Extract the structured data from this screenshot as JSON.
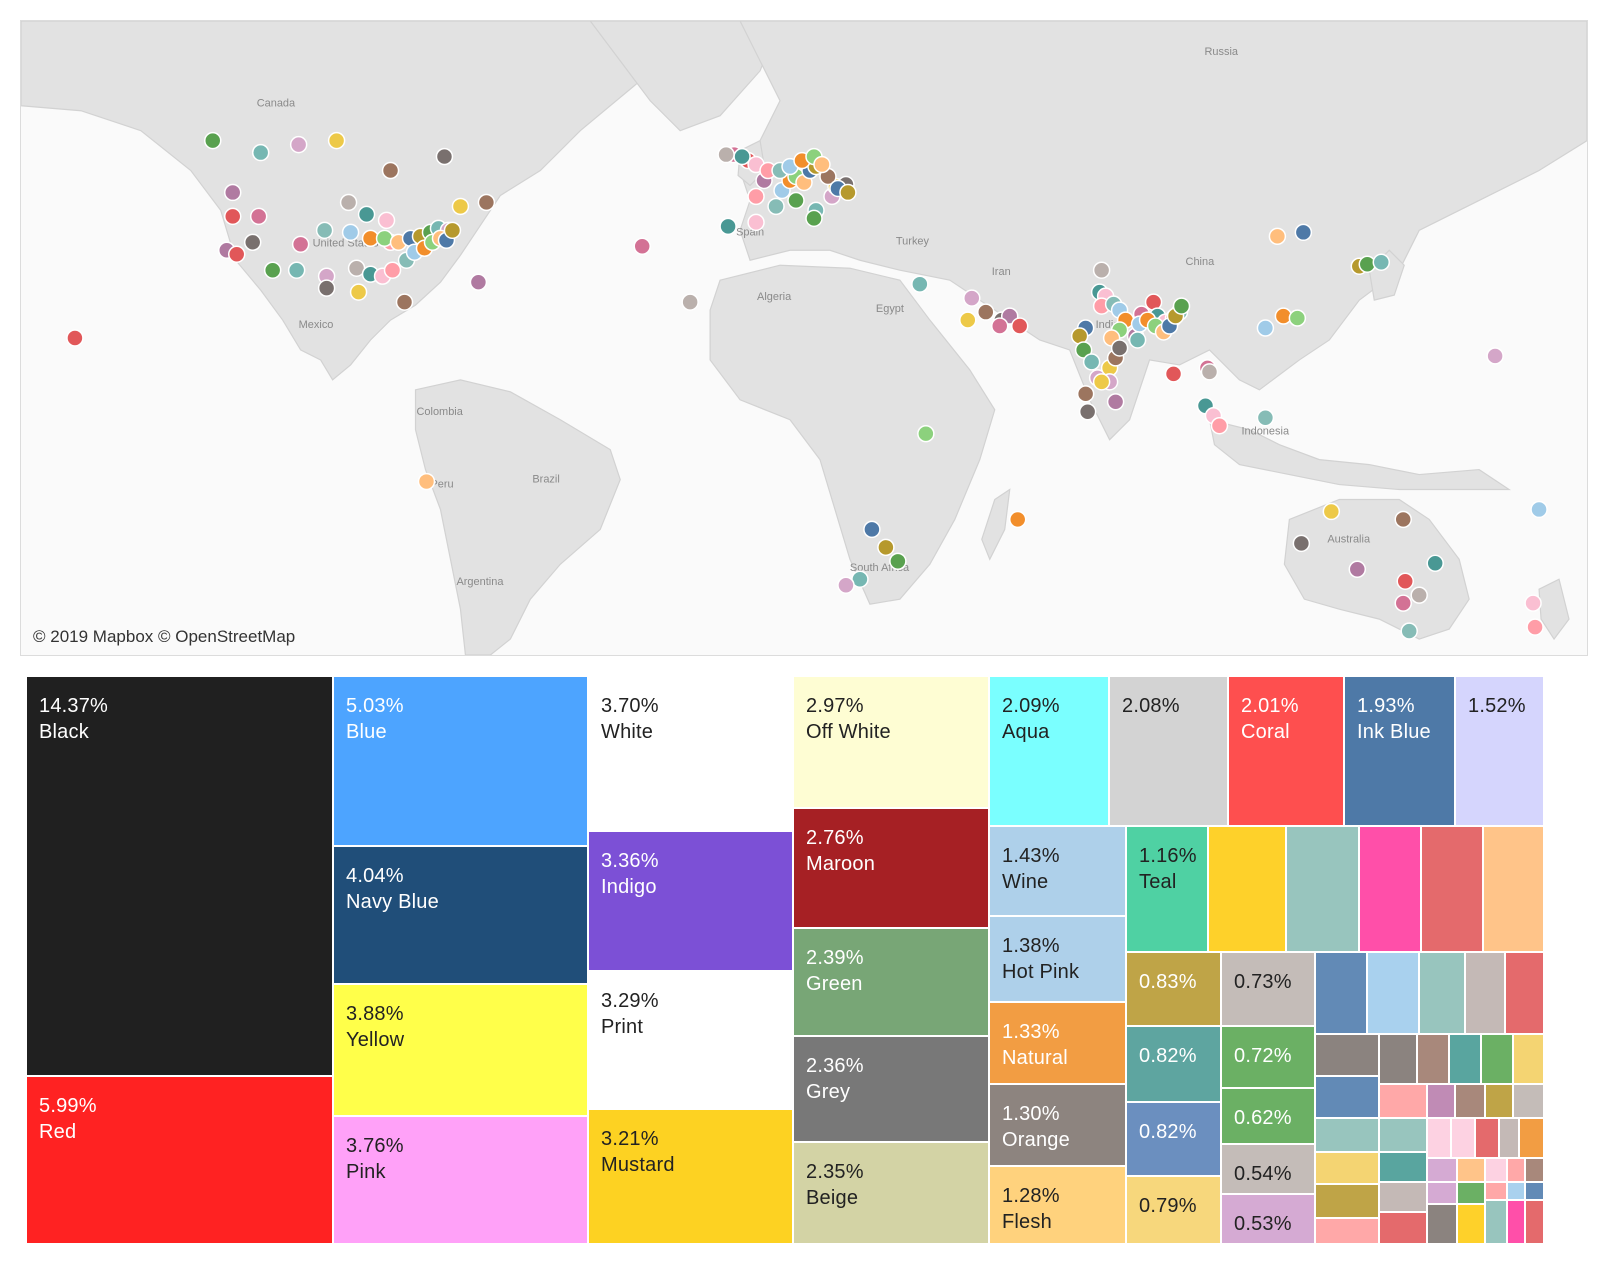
{
  "map": {
    "attribution": "© 2019 Mapbox © OpenStreetMap",
    "labels": {
      "russia": "Russia",
      "canada": "Canada",
      "us": "United States",
      "mexico": "Mexico",
      "colombia": "Colombia",
      "peru": "Peru",
      "brazil": "Brazil",
      "argentina": "Argentina",
      "spain": "Spain",
      "algeria": "Algeria",
      "egypt": "Egypt",
      "turkey": "Turkey",
      "iran": "Iran",
      "china": "China",
      "india": "India",
      "indonesia": "Indonesia",
      "australia": "Australia",
      "south_africa": "South Africa"
    },
    "palette": [
      "#59a14f",
      "#edc948",
      "#b07aa1",
      "#bab0ac",
      "#ff9da7",
      "#f28e2b",
      "#4e79a7",
      "#76b7b2",
      "#9c755f",
      "#e15759",
      "#499894",
      "#86bcb6",
      "#8cd17d",
      "#b6992d",
      "#d4a6c8",
      "#79706e",
      "#d37295",
      "#fabfd2",
      "#a0cbe8",
      "#ffbe7d"
    ]
  },
  "treemap": {
    "cells": [
      {
        "pct": "14.37%",
        "name": "Black",
        "color": "#202020",
        "text": "#ffffff"
      },
      {
        "pct": "5.99%",
        "name": "Red",
        "color": "#ff2222",
        "text": "#ffffff"
      },
      {
        "pct": "5.03%",
        "name": "Blue",
        "color": "#4da4ff",
        "text": "#ffffff"
      },
      {
        "pct": "4.04%",
        "name": "Navy Blue",
        "color": "#204e79",
        "text": "#ffffff"
      },
      {
        "pct": "3.88%",
        "name": "Yellow",
        "color": "#ffff4a",
        "text": "#222222"
      },
      {
        "pct": "3.76%",
        "name": "Pink",
        "color": "#ffa1f8",
        "text": "#222222"
      },
      {
        "pct": "3.70%",
        "name": "White",
        "color": "#ffffff",
        "text": "#222222"
      },
      {
        "pct": "3.36%",
        "name": "Indigo",
        "color": "#7c50d6",
        "text": "#ffffff"
      },
      {
        "pct": "3.29%",
        "name": "Print",
        "color": "#ffffff",
        "text": "#222222"
      },
      {
        "pct": "3.21%",
        "name": "Mustard",
        "color": "#fdd222",
        "text": "#222222"
      },
      {
        "pct": "2.97%",
        "name": "Off White",
        "color": "#fefdd3",
        "text": "#222222"
      },
      {
        "pct": "2.76%",
        "name": "Maroon",
        "color": "#a62024",
        "text": "#ffffff"
      },
      {
        "pct": "2.39%",
        "name": "Green",
        "color": "#78a676",
        "text": "#ffffff"
      },
      {
        "pct": "2.36%",
        "name": "Grey",
        "color": "#787878",
        "text": "#ffffff"
      },
      {
        "pct": "2.35%",
        "name": "Beige",
        "color": "#d3d3a5",
        "text": "#222222"
      },
      {
        "pct": "2.09%",
        "name": "Aqua",
        "color": "#7affff",
        "text": "#222222"
      },
      {
        "pct": "2.08%",
        "name": "",
        "color": "#d3d3d3",
        "text": "#222222"
      },
      {
        "pct": "2.01%",
        "name": "Coral",
        "color": "#fe4f4f",
        "text": "#ffffff"
      },
      {
        "pct": "1.93%",
        "name": "Ink Blue",
        "color": "#4e79a7",
        "text": "#ffffff"
      },
      {
        "pct": "1.52%",
        "name": "",
        "color": "#d5d5fd",
        "text": "#222222"
      },
      {
        "pct": "1.43%",
        "name": "Wine",
        "color": "#aed0ea",
        "text": "#222222"
      },
      {
        "pct": "1.38%",
        "name": "Hot Pink",
        "color": "#aed0ea",
        "text": "#222222"
      },
      {
        "pct": "1.33%",
        "name": "Natural",
        "color": "#f29d43",
        "text": "#ffffff"
      },
      {
        "pct": "1.30%",
        "name": "Orange",
        "color": "#8d847f",
        "text": "#ffffff"
      },
      {
        "pct": "1.28%",
        "name": "Flesh",
        "color": "#ffd27d",
        "text": "#222222"
      },
      {
        "pct": "1.16%",
        "name": "Teal",
        "color": "#4fd1a3",
        "text": "#222222"
      },
      {
        "pct": "0.83%",
        "name": "",
        "color": "#bfa447",
        "text": "#ffffff"
      },
      {
        "pct": "0.82%",
        "name": "",
        "color": "#5ea5a0",
        "text": "#ffffff"
      },
      {
        "pct": "0.82%",
        "name": "",
        "color": "#6b8fbf",
        "text": "#ffffff"
      },
      {
        "pct": "0.79%",
        "name": "",
        "color": "#f7d77c",
        "text": "#222222"
      },
      {
        "pct": "0.73%",
        "name": "",
        "color": "#c4bcb8",
        "text": "#222222"
      },
      {
        "pct": "0.72%",
        "name": "",
        "color": "#6bb064",
        "text": "#ffffff"
      },
      {
        "pct": "0.62%",
        "name": "",
        "color": "#6bb064",
        "text": "#ffffff"
      },
      {
        "pct": "0.54%",
        "name": "",
        "color": "#c4bcb8",
        "text": "#222222"
      },
      {
        "pct": "0.53%",
        "name": "",
        "color": "#d5aad3",
        "text": "#222222"
      }
    ],
    "small_colors": [
      "#fed12a",
      "#98c5be",
      "#ff4fa9",
      "#e46a6c",
      "#ffc489",
      "#628ab6",
      "#a9d1ee",
      "#98c5be",
      "#c4b9b6",
      "#e46a6c",
      "#8b837f",
      "#8b837f",
      "#a8887b",
      "#59a59f",
      "#6bb064",
      "#f4d472",
      "#628ab6",
      "#ffa8a8",
      "#c08bb5",
      "#a8887b",
      "#bfa447",
      "#c4bcb8",
      "#98c5be",
      "#98c5be",
      "#fdd2e2",
      "#fdd2e2",
      "#e46a6c",
      "#c4b9b6",
      "#f29d43",
      "#f4d472",
      "#59a59f",
      "#d5aad3",
      "#ffc489",
      "#fdd2e2",
      "#ffa8a8",
      "#a8887b",
      "#bfa447",
      "#c4b9b6",
      "#d5aad3",
      "#6bb064",
      "#ffa8a8",
      "#a9d1ee",
      "#628ab6",
      "#ffa8a8",
      "#e46a6c",
      "#8b837f"
    ]
  }
}
